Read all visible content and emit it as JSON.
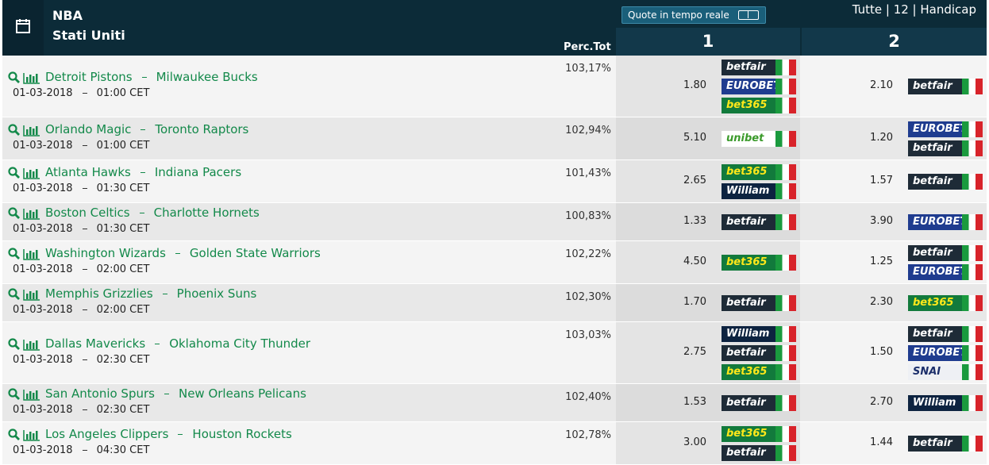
{
  "header": {
    "league": "NBA",
    "country": "Stati Uniti",
    "perc_label": "Perc.Tot",
    "live_button": "Quote in tempo reale",
    "filters": "Tutte | 12 | Handicap",
    "col1": "1",
    "col2": "2"
  },
  "matches": [
    {
      "home": "Detroit Pistons",
      "away": "Milwaukee Bucks",
      "date": "01-03-2018",
      "time": "01:00 CET",
      "perc": "103,17%",
      "odd1": "1.80",
      "books1": [
        {
          "name": "betfair",
          "color": "#1e2b37",
          "text_color": "#ffffff"
        },
        {
          "name": "EUROBET",
          "color": "#1f3c8f",
          "text_color": "#ffffff"
        },
        {
          "name": "bet365",
          "color": "#127a3c",
          "text_color": "#ffe81a"
        }
      ],
      "odd2": "2.10",
      "books2": [
        {
          "name": "betfair",
          "color": "#1e2b37",
          "text_color": "#ffffff"
        }
      ]
    },
    {
      "home": "Orlando Magic",
      "away": "Toronto Raptors",
      "date": "01-03-2018",
      "time": "01:00 CET",
      "perc": "102,94%",
      "odd1": "5.10",
      "books1": [
        {
          "name": "unibet",
          "color": "#ffffff",
          "text_color": "#3a9a2a"
        }
      ],
      "odd2": "1.20",
      "books2": [
        {
          "name": "EUROBET",
          "color": "#1f3c8f",
          "text_color": "#ffffff"
        },
        {
          "name": "betfair",
          "color": "#1e2b37",
          "text_color": "#ffffff"
        }
      ]
    },
    {
      "home": "Atlanta Hawks",
      "away": "Indiana Pacers",
      "date": "01-03-2018",
      "time": "01:30 CET",
      "perc": "101,43%",
      "odd1": "2.65",
      "books1": [
        {
          "name": "bet365",
          "color": "#127a3c",
          "text_color": "#ffe81a"
        },
        {
          "name": "William HILL",
          "color": "#0d2340",
          "text_color": "#ffffff"
        }
      ],
      "odd2": "1.57",
      "books2": [
        {
          "name": "betfair",
          "color": "#1e2b37",
          "text_color": "#ffffff"
        }
      ]
    },
    {
      "home": "Boston Celtics",
      "away": "Charlotte Hornets",
      "date": "01-03-2018",
      "time": "01:30 CET",
      "perc": "100,83%",
      "odd1": "1.33",
      "books1": [
        {
          "name": "betfair",
          "color": "#1e2b37",
          "text_color": "#ffffff"
        }
      ],
      "odd2": "3.90",
      "books2": [
        {
          "name": "EUROBET",
          "color": "#1f3c8f",
          "text_color": "#ffffff"
        }
      ]
    },
    {
      "home": "Washington Wizards",
      "away": "Golden State Warriors",
      "date": "01-03-2018",
      "time": "02:00 CET",
      "perc": "102,22%",
      "odd1": "4.50",
      "books1": [
        {
          "name": "bet365",
          "color": "#127a3c",
          "text_color": "#ffe81a"
        }
      ],
      "odd2": "1.25",
      "books2": [
        {
          "name": "betfair",
          "color": "#1e2b37",
          "text_color": "#ffffff"
        },
        {
          "name": "EUROBET",
          "color": "#1f3c8f",
          "text_color": "#ffffff"
        }
      ]
    },
    {
      "home": "Memphis Grizzlies",
      "away": "Phoenix Suns",
      "date": "01-03-2018",
      "time": "02:00 CET",
      "perc": "102,30%",
      "odd1": "1.70",
      "books1": [
        {
          "name": "betfair",
          "color": "#1e2b37",
          "text_color": "#ffffff"
        }
      ],
      "odd2": "2.30",
      "books2": [
        {
          "name": "bet365",
          "color": "#127a3c",
          "text_color": "#ffe81a"
        }
      ]
    },
    {
      "home": "Dallas Mavericks",
      "away": "Oklahoma City Thunder",
      "date": "01-03-2018",
      "time": "02:30 CET",
      "perc": "103,03%",
      "odd1": "2.75",
      "books1": [
        {
          "name": "William HILL",
          "color": "#0d2340",
          "text_color": "#ffffff"
        },
        {
          "name": "betfair",
          "color": "#1e2b37",
          "text_color": "#ffffff"
        },
        {
          "name": "bet365",
          "color": "#127a3c",
          "text_color": "#ffe81a"
        }
      ],
      "odd2": "1.50",
      "books2": [
        {
          "name": "betfair",
          "color": "#1e2b37",
          "text_color": "#ffffff"
        },
        {
          "name": "EUROBET",
          "color": "#1f3c8f",
          "text_color": "#ffffff"
        },
        {
          "name": "SNAI",
          "color": "#eef0f4",
          "text_color": "#1c2f6b"
        }
      ]
    },
    {
      "home": "San Antonio Spurs",
      "away": "New Orleans Pelicans",
      "date": "01-03-2018",
      "time": "02:30 CET",
      "perc": "102,40%",
      "odd1": "1.53",
      "books1": [
        {
          "name": "betfair",
          "color": "#1e2b37",
          "text_color": "#ffffff"
        }
      ],
      "odd2": "2.70",
      "books2": [
        {
          "name": "William HILL",
          "color": "#0d2340",
          "text_color": "#ffffff"
        }
      ]
    },
    {
      "home": "Los Angeles Clippers",
      "away": "Houston Rockets",
      "date": "01-03-2018",
      "time": "04:30 CET",
      "perc": "102,78%",
      "odd1": "3.00",
      "books1": [
        {
          "name": "bet365",
          "color": "#127a3c",
          "text_color": "#ffe81a"
        },
        {
          "name": "betfair",
          "color": "#1e2b37",
          "text_color": "#ffffff"
        }
      ],
      "odd2": "1.44",
      "books2": [
        {
          "name": "betfair",
          "color": "#1e2b37",
          "text_color": "#ffffff"
        }
      ]
    }
  ]
}
